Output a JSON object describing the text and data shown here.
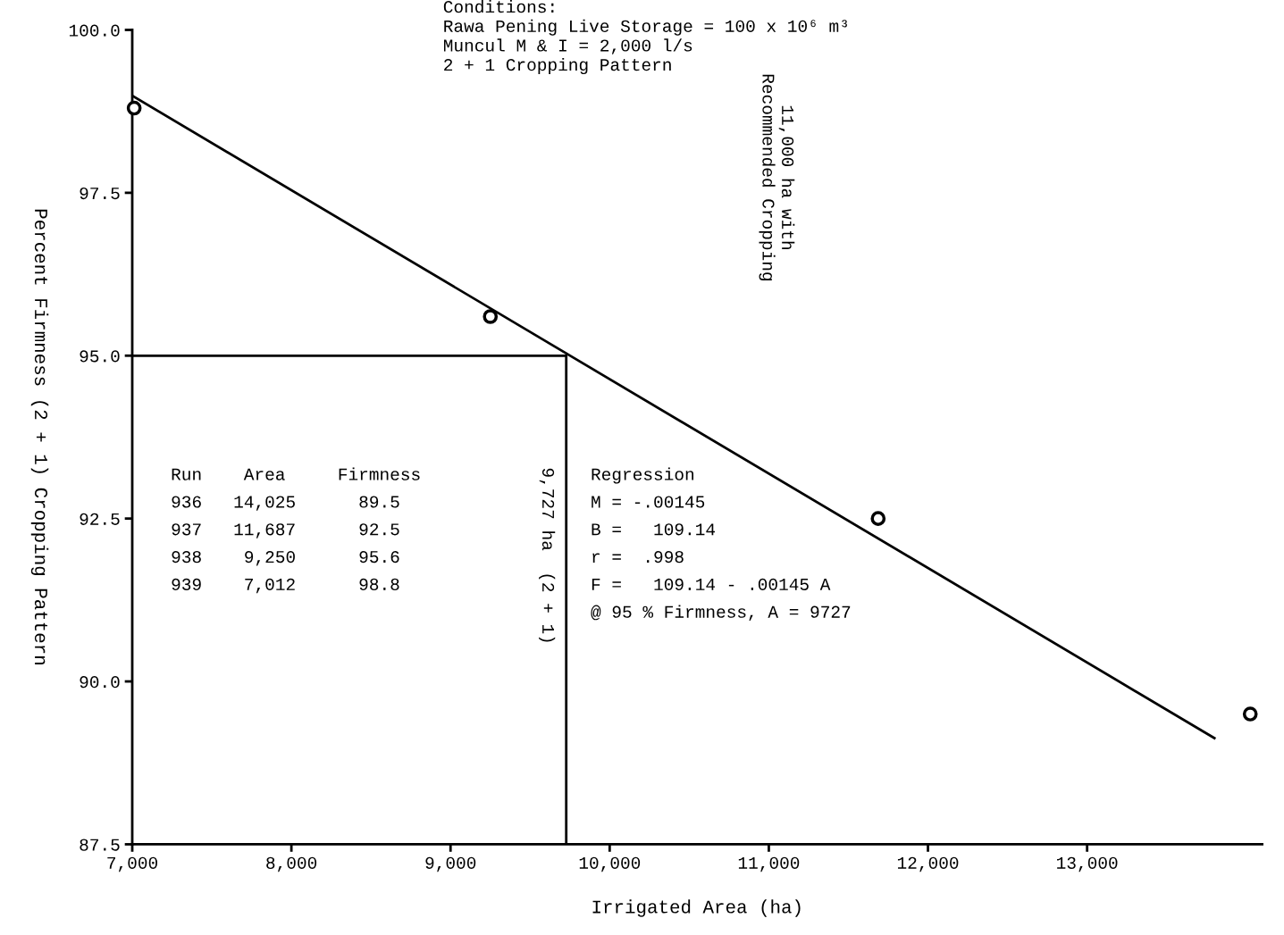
{
  "chart_data": {
    "type": "scatter",
    "xlabel": "Irrigated Area (ha)",
    "ylabel": "Percent Firmness (2 + 1) Cropping Pattern",
    "series": [
      {
        "color": "#000000",
        "marker": "circle",
        "x": [
          7012,
          9250,
          11687,
          14025
        ],
        "values": [
          98.8,
          95.6,
          92.5,
          89.5
        ]
      },
      {
        "type": "line",
        "color": "#000000",
        "marker": "none",
        "x": [
          7000,
          13800
        ],
        "values": [
          98.99,
          89.13
        ]
      },
      {
        "type": "line",
        "color": "#000000",
        "marker": "none",
        "x": [
          7000,
          9727,
          9727
        ],
        "values": [
          95.0,
          95.0,
          87.5
        ]
      }
    ],
    "xlim": [
      7000,
      14100
    ],
    "xticks": [
      {
        "value": 7000,
        "label": "7,000"
      },
      {
        "value": 8000,
        "label": "8,000"
      },
      {
        "value": 9000,
        "label": "9,000"
      },
      {
        "value": 10000,
        "label": "10,000"
      },
      {
        "value": 11000,
        "label": "11,000"
      },
      {
        "value": 12000,
        "label": "12,000"
      },
      {
        "value": 13000,
        "label": "13,000"
      }
    ],
    "ylim": [
      87.5,
      100
    ],
    "yticks": [
      {
        "value": 87.5,
        "label": "87.5"
      },
      {
        "value": 90,
        "label": "90.0"
      },
      {
        "value": 92.5,
        "label": "92.5"
      },
      {
        "value": 95,
        "label": "95.0"
      },
      {
        "value": 97.5,
        "label": "97.5"
      },
      {
        "value": 100,
        "label": "100.0"
      }
    ],
    "grid": false,
    "legend": false,
    "annotations": [
      "Conditions:\nRawa Pening Live Storage = 100 x 10⁶ m³\nMuncul M & I = 2,000 l/s\n2 + 1 Cropping Pattern",
      "Run    Area     Firmness\n936   14,025      89.5\n937   11,687      92.5\n938    9,250      95.6\n939    7,012      98.8",
      "Regression\nM = -.00145\nB =   109.14\nr =  .998\nF =   109.14 - .00145 A\n@ 95 % Firmness, A = 9727",
      "9,727 ha  (2 + 1)",
      "11,000 ha with\nRecommended Cropping"
    ]
  }
}
